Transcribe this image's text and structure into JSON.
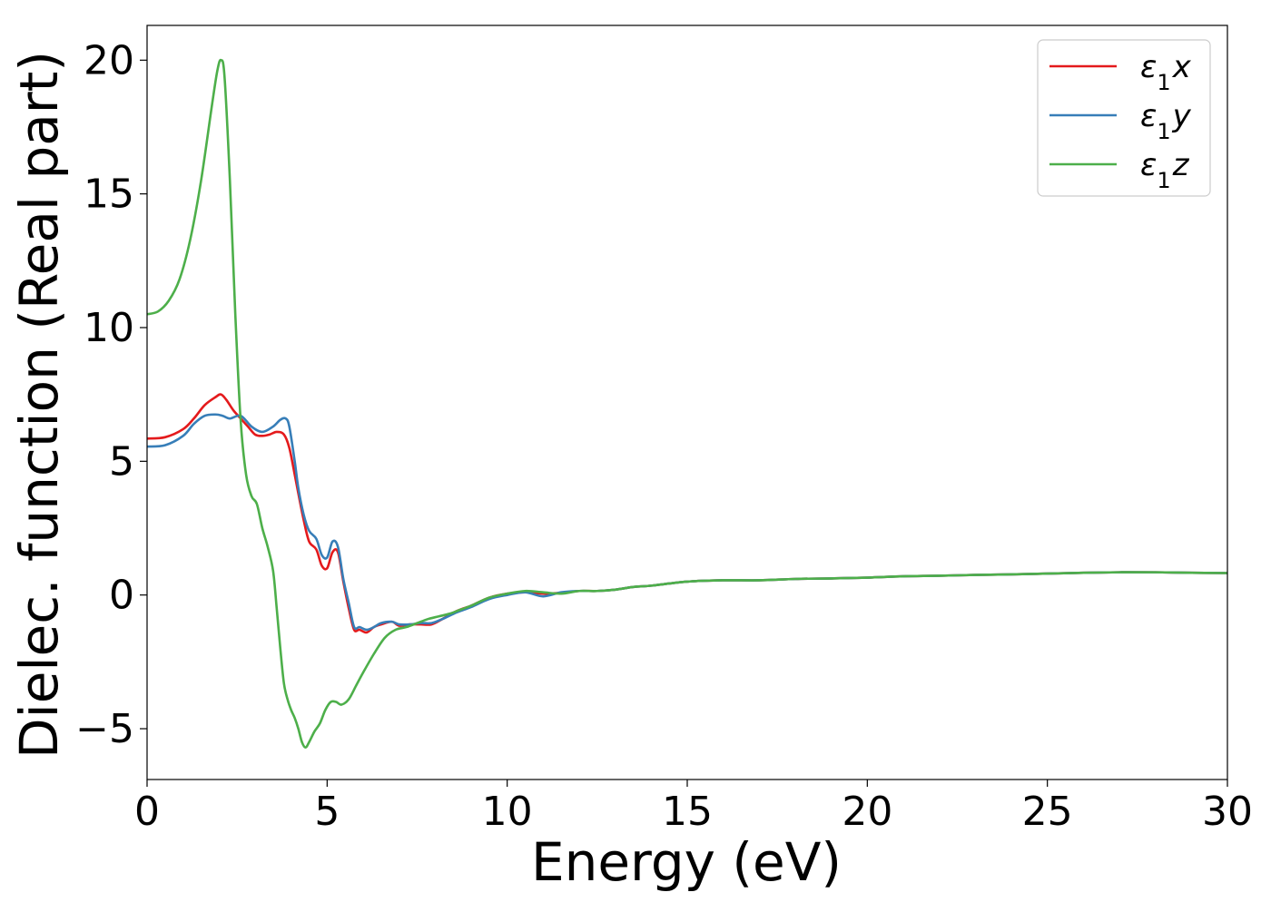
{
  "chart_data": {
    "type": "line",
    "xlabel": "Energy (eV)",
    "ylabel": "Dielec. function (Real part)",
    "xlim": [
      0,
      30
    ],
    "ylim": [
      -6.9,
      21.3
    ],
    "xticks": [
      "0",
      "5",
      "10",
      "15",
      "20",
      "25",
      "30"
    ],
    "yticks": [
      "−5",
      "0",
      "5",
      "10",
      "15",
      "20"
    ],
    "grid": false,
    "legend_position": "top-right",
    "legend": [
      {
        "base": "ε",
        "sub": "1",
        "suffix": "x"
      },
      {
        "base": "ε",
        "sub": "1",
        "suffix": "y"
      },
      {
        "base": "ε",
        "sub": "1",
        "suffix": "z"
      }
    ],
    "series": [
      {
        "key": "eps1x",
        "color": "#e41a1c",
        "x": [
          0,
          0.5,
          1.0,
          1.3,
          1.6,
          1.9,
          2.05,
          2.2,
          2.4,
          2.6,
          2.8,
          3.0,
          3.2,
          3.4,
          3.6,
          3.8,
          3.95,
          4.1,
          4.2,
          4.35,
          4.5,
          4.7,
          4.85,
          5.0,
          5.15,
          5.3,
          5.45,
          5.6,
          5.75,
          5.9,
          6.1,
          6.3,
          6.5,
          6.8,
          7.0,
          7.3,
          7.6,
          7.9,
          8.2,
          8.6,
          9.0,
          9.5,
          10.0,
          10.5,
          11.0,
          11.5,
          12.0,
          12.5,
          13.0,
          13.5,
          14.0,
          15.0,
          16.0,
          17.0,
          18.0,
          19.0,
          20.0,
          21.0,
          22.0,
          23.0,
          24.0,
          25.0,
          26.0,
          27.0,
          28.0,
          29.0,
          30.0
        ],
        "y": [
          5.85,
          5.9,
          6.2,
          6.6,
          7.1,
          7.4,
          7.5,
          7.3,
          6.9,
          6.6,
          6.3,
          6.0,
          5.95,
          6.0,
          6.1,
          6.0,
          5.5,
          4.5,
          3.8,
          2.8,
          2.0,
          1.7,
          1.1,
          1.0,
          1.6,
          1.6,
          0.5,
          -0.5,
          -1.3,
          -1.3,
          -1.4,
          -1.2,
          -1.1,
          -1.0,
          -1.15,
          -1.1,
          -1.1,
          -1.1,
          -0.9,
          -0.6,
          -0.4,
          -0.1,
          0.05,
          0.1,
          0.05,
          0.08,
          0.15,
          0.15,
          0.2,
          0.3,
          0.35,
          0.5,
          0.55,
          0.55,
          0.6,
          0.62,
          0.65,
          0.7,
          0.72,
          0.75,
          0.77,
          0.8,
          0.83,
          0.85,
          0.85,
          0.83,
          0.82
        ]
      },
      {
        "key": "eps1y",
        "color": "#377eb8",
        "x": [
          0,
          0.5,
          1.0,
          1.3,
          1.6,
          1.9,
          2.1,
          2.3,
          2.6,
          2.9,
          3.2,
          3.5,
          3.7,
          3.85,
          3.95,
          4.1,
          4.2,
          4.35,
          4.5,
          4.7,
          4.85,
          5.0,
          5.15,
          5.3,
          5.45,
          5.6,
          5.75,
          5.9,
          6.1,
          6.3,
          6.5,
          6.8,
          7.0,
          7.3,
          7.6,
          7.9,
          8.2,
          8.6,
          9.0,
          9.5,
          10.0,
          10.5,
          11.0,
          11.5,
          12.0,
          12.5,
          13.0,
          13.5,
          14.0,
          15.0,
          16.0,
          17.0,
          18.0,
          19.0,
          20.0,
          21.0,
          22.0,
          23.0,
          24.0,
          25.0,
          26.0,
          27.0,
          28.0,
          29.0,
          30.0
        ],
        "y": [
          5.55,
          5.6,
          5.95,
          6.4,
          6.7,
          6.75,
          6.7,
          6.6,
          6.7,
          6.3,
          6.1,
          6.3,
          6.55,
          6.6,
          6.3,
          5.0,
          4.0,
          3.0,
          2.4,
          2.1,
          1.5,
          1.4,
          2.0,
          1.8,
          0.6,
          -0.3,
          -1.2,
          -1.2,
          -1.3,
          -1.2,
          -1.05,
          -1.0,
          -1.1,
          -1.1,
          -1.05,
          -1.05,
          -0.9,
          -0.65,
          -0.45,
          -0.15,
          0.0,
          0.1,
          -0.05,
          0.1,
          0.15,
          0.15,
          0.2,
          0.3,
          0.35,
          0.5,
          0.55,
          0.55,
          0.6,
          0.62,
          0.65,
          0.7,
          0.72,
          0.75,
          0.77,
          0.8,
          0.83,
          0.85,
          0.85,
          0.83,
          0.82
        ]
      },
      {
        "key": "eps1z",
        "color": "#4daf4a",
        "x": [
          0,
          0.3,
          0.6,
          0.9,
          1.2,
          1.5,
          1.8,
          1.95,
          2.05,
          2.15,
          2.3,
          2.45,
          2.6,
          2.75,
          2.9,
          3.05,
          3.2,
          3.35,
          3.5,
          3.6,
          3.7,
          3.8,
          3.9,
          4.0,
          4.1,
          4.2,
          4.3,
          4.4,
          4.5,
          4.65,
          4.8,
          4.95,
          5.1,
          5.25,
          5.4,
          5.6,
          5.8,
          6.0,
          6.3,
          6.6,
          6.9,
          7.2,
          7.5,
          7.8,
          8.1,
          8.4,
          8.7,
          9.0,
          9.5,
          10.0,
          10.5,
          11.0,
          11.5,
          12.0,
          12.5,
          13.0,
          13.5,
          14.0,
          15.0,
          16.0,
          17.0,
          18.0,
          19.0,
          20.0,
          21.0,
          22.0,
          23.0,
          24.0,
          25.0,
          26.0,
          27.0,
          28.0,
          29.0,
          30.0
        ],
        "y": [
          10.5,
          10.6,
          11.0,
          11.8,
          13.3,
          15.5,
          18.3,
          19.6,
          20.0,
          19.4,
          15.5,
          10.5,
          6.5,
          4.5,
          3.7,
          3.4,
          2.5,
          1.8,
          0.9,
          -0.5,
          -2.0,
          -3.3,
          -3.9,
          -4.3,
          -4.6,
          -5.0,
          -5.5,
          -5.7,
          -5.5,
          -5.1,
          -4.8,
          -4.3,
          -4.0,
          -4.0,
          -4.1,
          -3.9,
          -3.4,
          -2.9,
          -2.2,
          -1.6,
          -1.3,
          -1.2,
          -1.05,
          -0.9,
          -0.8,
          -0.7,
          -0.55,
          -0.4,
          -0.1,
          0.05,
          0.15,
          0.1,
          0.05,
          0.15,
          0.15,
          0.2,
          0.3,
          0.35,
          0.5,
          0.55,
          0.55,
          0.6,
          0.62,
          0.65,
          0.7,
          0.72,
          0.75,
          0.77,
          0.8,
          0.83,
          0.85,
          0.85,
          0.83,
          0.82
        ]
      }
    ]
  }
}
